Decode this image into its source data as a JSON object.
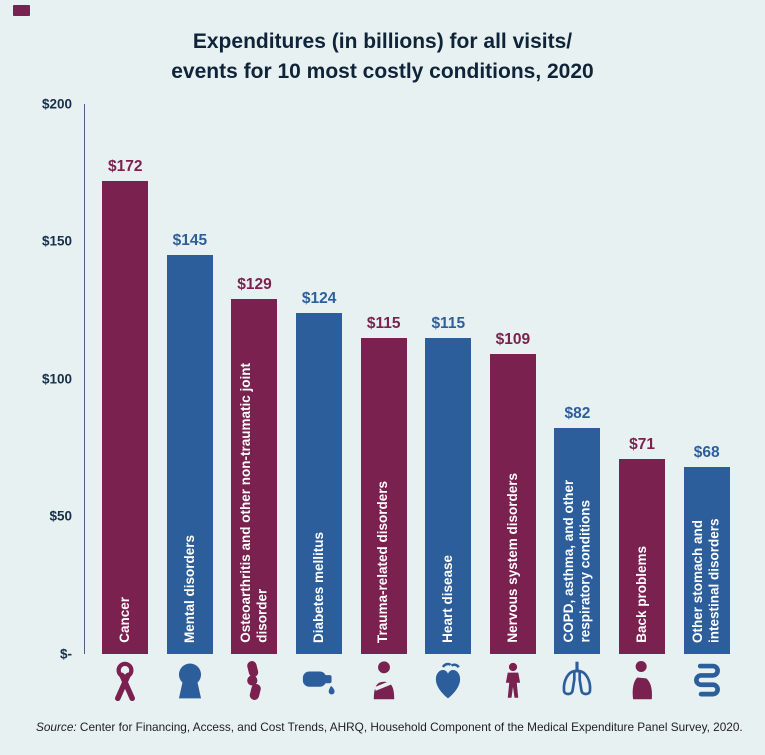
{
  "header": {
    "title_line1": "Expenditures (in billions) for all visits/",
    "title_line2": "events for 10 most costly conditions, 2020"
  },
  "chart_data": {
    "type": "bar",
    "title": "Expenditures (in billions) for all visits/events for 10 most costly conditions, 2020",
    "categories": [
      "Cancer",
      "Mental disorders",
      "Osteoarthritis and other non-traumatic joint disorder",
      "Diabetes mellitus",
      "Trauma-related disorders",
      "Heart disease",
      "Nervous system disorders",
      "COPD, asthma, and other respiratory conditions",
      "Back problems",
      "Other stomach and intestinal disorders"
    ],
    "values": [
      172,
      145,
      129,
      124,
      115,
      115,
      109,
      82,
      71,
      68
    ],
    "value_labels": [
      "$172",
      "$145",
      "$129",
      "$124",
      "$115",
      "$115",
      "$109",
      "$82",
      "$71",
      "$68"
    ],
    "xlabel": "",
    "ylabel": "",
    "ylim": [
      0,
      200
    ],
    "yticks": [
      {
        "value": 200,
        "label": "$200"
      },
      {
        "value": 150,
        "label": "$150"
      },
      {
        "value": 100,
        "label": "$100"
      },
      {
        "value": 50,
        "label": "$50"
      },
      {
        "value": 0,
        "label": "$-"
      }
    ],
    "grid": false,
    "legend": false,
    "bar_colors": [
      "#7b2150",
      "#2d5e9c",
      "#7b2150",
      "#2d5e9c",
      "#7b2150",
      "#2d5e9c",
      "#7b2150",
      "#2d5e9c",
      "#7b2150",
      "#2d5e9c"
    ],
    "icons": [
      "cancer-ribbon-icon",
      "head-profile-icon",
      "knee-joint-icon",
      "glucose-meter-icon",
      "injured-person-icon",
      "heart-icon",
      "human-body-icon",
      "lungs-icon",
      "back-pain-icon",
      "intestines-icon"
    ]
  },
  "colors": {
    "background": "#e8f1f2",
    "maroon": "#7b2150",
    "blue": "#2d5e9c",
    "title_text": "#0f2439",
    "axis_text": "#16304a",
    "bar_label_text": "#ffffff"
  },
  "source": {
    "label": "Source:",
    "text": " Center for Financing, Access, and Cost Trends, AHRQ, Household Component of the Medical Expenditure Panel Survey, 2020."
  }
}
